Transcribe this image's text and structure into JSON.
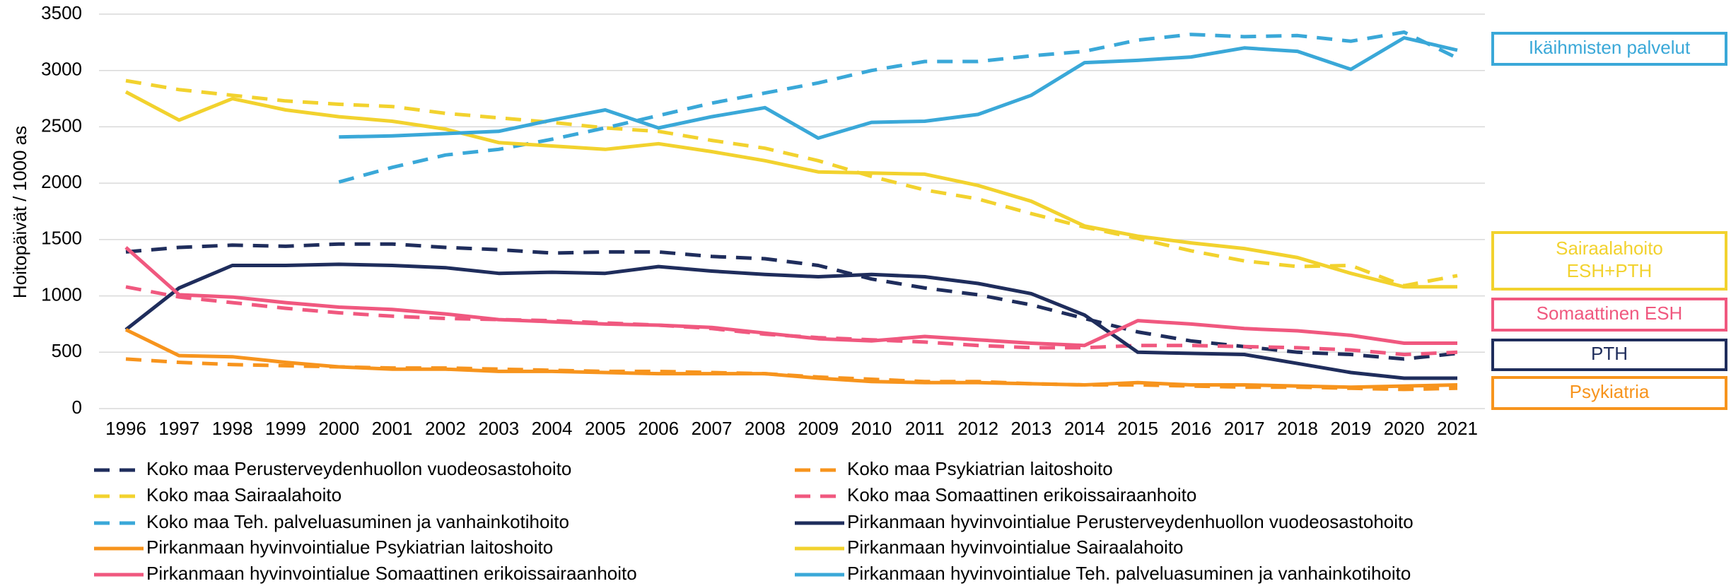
{
  "chart_data": {
    "type": "line",
    "ylabel": "Hoitopäivät / 1000 as",
    "categories": [
      "1996",
      "1997",
      "1998",
      "1999",
      "2000",
      "2001",
      "2002",
      "2003",
      "2004",
      "2005",
      "2006",
      "2007",
      "2008",
      "2009",
      "2010",
      "2011",
      "2012",
      "2013",
      "2014",
      "2015",
      "2016",
      "2017",
      "2018",
      "2019",
      "2020",
      "2021"
    ],
    "ylim": [
      0,
      3500
    ],
    "yticks": [
      0,
      500,
      1000,
      1500,
      2000,
      2500,
      3000,
      3500
    ],
    "grid": true,
    "series": [
      {
        "name": "Koko maa Perusterveydenhuollon vuodeosastohoito",
        "color": "#1f2d5c",
        "dash": true,
        "values": [
          1390,
          1430,
          1450,
          1440,
          1460,
          1460,
          1430,
          1410,
          1380,
          1390,
          1390,
          1350,
          1330,
          1270,
          1150,
          1070,
          1010,
          920,
          800,
          680,
          600,
          550,
          500,
          480,
          440,
          490
        ]
      },
      {
        "name": "Koko maa Psykiatrian laitoshoito",
        "color": "#f7941d",
        "dash": true,
        "values": [
          440,
          410,
          390,
          380,
          370,
          360,
          360,
          350,
          340,
          330,
          330,
          320,
          310,
          280,
          260,
          240,
          240,
          220,
          210,
          210,
          200,
          190,
          190,
          180,
          170,
          180
        ]
      },
      {
        "name": "Koko maa Sairaalahoito",
        "color": "#f2d22e",
        "dash": true,
        "values": [
          2910,
          2830,
          2780,
          2730,
          2700,
          2680,
          2620,
          2580,
          2540,
          2490,
          2460,
          2380,
          2310,
          2200,
          2060,
          1940,
          1860,
          1730,
          1610,
          1510,
          1400,
          1310,
          1260,
          1270,
          1090,
          1180
        ]
      },
      {
        "name": "Koko maa Somaattinen erikoissairaanhoito",
        "color": "#f0587f",
        "dash": true,
        "values": [
          1080,
          990,
          940,
          890,
          850,
          820,
          800,
          790,
          780,
          760,
          740,
          710,
          660,
          630,
          610,
          590,
          560,
          540,
          540,
          560,
          560,
          550,
          540,
          520,
          480,
          500
        ]
      },
      {
        "name": "Koko maa Teh. palveluasuminen ja vanhainkotihoito",
        "color": "#3aa8d8",
        "dash": true,
        "values": [
          null,
          null,
          null,
          null,
          2010,
          2140,
          2250,
          2300,
          2390,
          2490,
          2600,
          2710,
          2800,
          2890,
          3000,
          3080,
          3080,
          3130,
          3170,
          3270,
          3320,
          3300,
          3310,
          3260,
          3340,
          3110
        ]
      },
      {
        "name": "Pirkanmaan hyvinvointialue Perusterveydenhuollon vuodeosastohoito",
        "color": "#1f2d5c",
        "dash": false,
        "values": [
          700,
          1070,
          1270,
          1270,
          1280,
          1270,
          1250,
          1200,
          1210,
          1200,
          1260,
          1220,
          1190,
          1170,
          1190,
          1170,
          1110,
          1020,
          830,
          500,
          490,
          480,
          400,
          320,
          270,
          270
        ]
      },
      {
        "name": "Pirkanmaan hyvinvointialue Psykiatrian laitoshoito",
        "color": "#f7941d",
        "dash": false,
        "values": [
          700,
          470,
          460,
          410,
          370,
          350,
          350,
          330,
          330,
          320,
          310,
          310,
          310,
          270,
          240,
          230,
          230,
          220,
          210,
          230,
          210,
          210,
          200,
          190,
          200,
          210
        ]
      },
      {
        "name": "Pirkanmaan hyvinvointialue Sairaalahoito",
        "color": "#f2d22e",
        "dash": false,
        "values": [
          2810,
          2560,
          2750,
          2650,
          2590,
          2550,
          2480,
          2360,
          2330,
          2300,
          2350,
          2280,
          2200,
          2100,
          2090,
          2080,
          1980,
          1840,
          1620,
          1530,
          1470,
          1420,
          1340,
          1200,
          1080,
          1080
        ]
      },
      {
        "name": "Pirkanmaan hyvinvointialue Somaattinen erikoissairaanhoito",
        "color": "#f0587f",
        "dash": false,
        "values": [
          1430,
          1010,
          990,
          940,
          900,
          880,
          840,
          790,
          770,
          750,
          740,
          720,
          670,
          620,
          600,
          640,
          610,
          580,
          560,
          780,
          750,
          710,
          690,
          650,
          580,
          580
        ]
      },
      {
        "name": "Pirkanmaan hyvinvointialue Teh. palveluasuminen ja vanhainkotihoito",
        "color": "#3aa8d8",
        "dash": false,
        "values": [
          null,
          null,
          null,
          null,
          2410,
          2420,
          2440,
          2460,
          2560,
          2650,
          2490,
          2590,
          2670,
          2400,
          2540,
          2550,
          2610,
          2780,
          3070,
          3090,
          3120,
          3200,
          3170,
          3010,
          3290,
          3180
        ]
      }
    ],
    "annotations": [
      {
        "lines": [
          "Ikäihmisten palvelut"
        ],
        "color": "#3aa8d8"
      },
      {
        "lines": [
          "Sairaalahoito",
          "ESH+PTH"
        ],
        "color": "#f2d22e"
      },
      {
        "lines": [
          "Somaattinen ESH"
        ],
        "color": "#f0587f"
      },
      {
        "lines": [
          "PTH"
        ],
        "color": "#1f2d5c"
      },
      {
        "lines": [
          "Psykiatria"
        ],
        "color": "#f7941d"
      }
    ]
  }
}
